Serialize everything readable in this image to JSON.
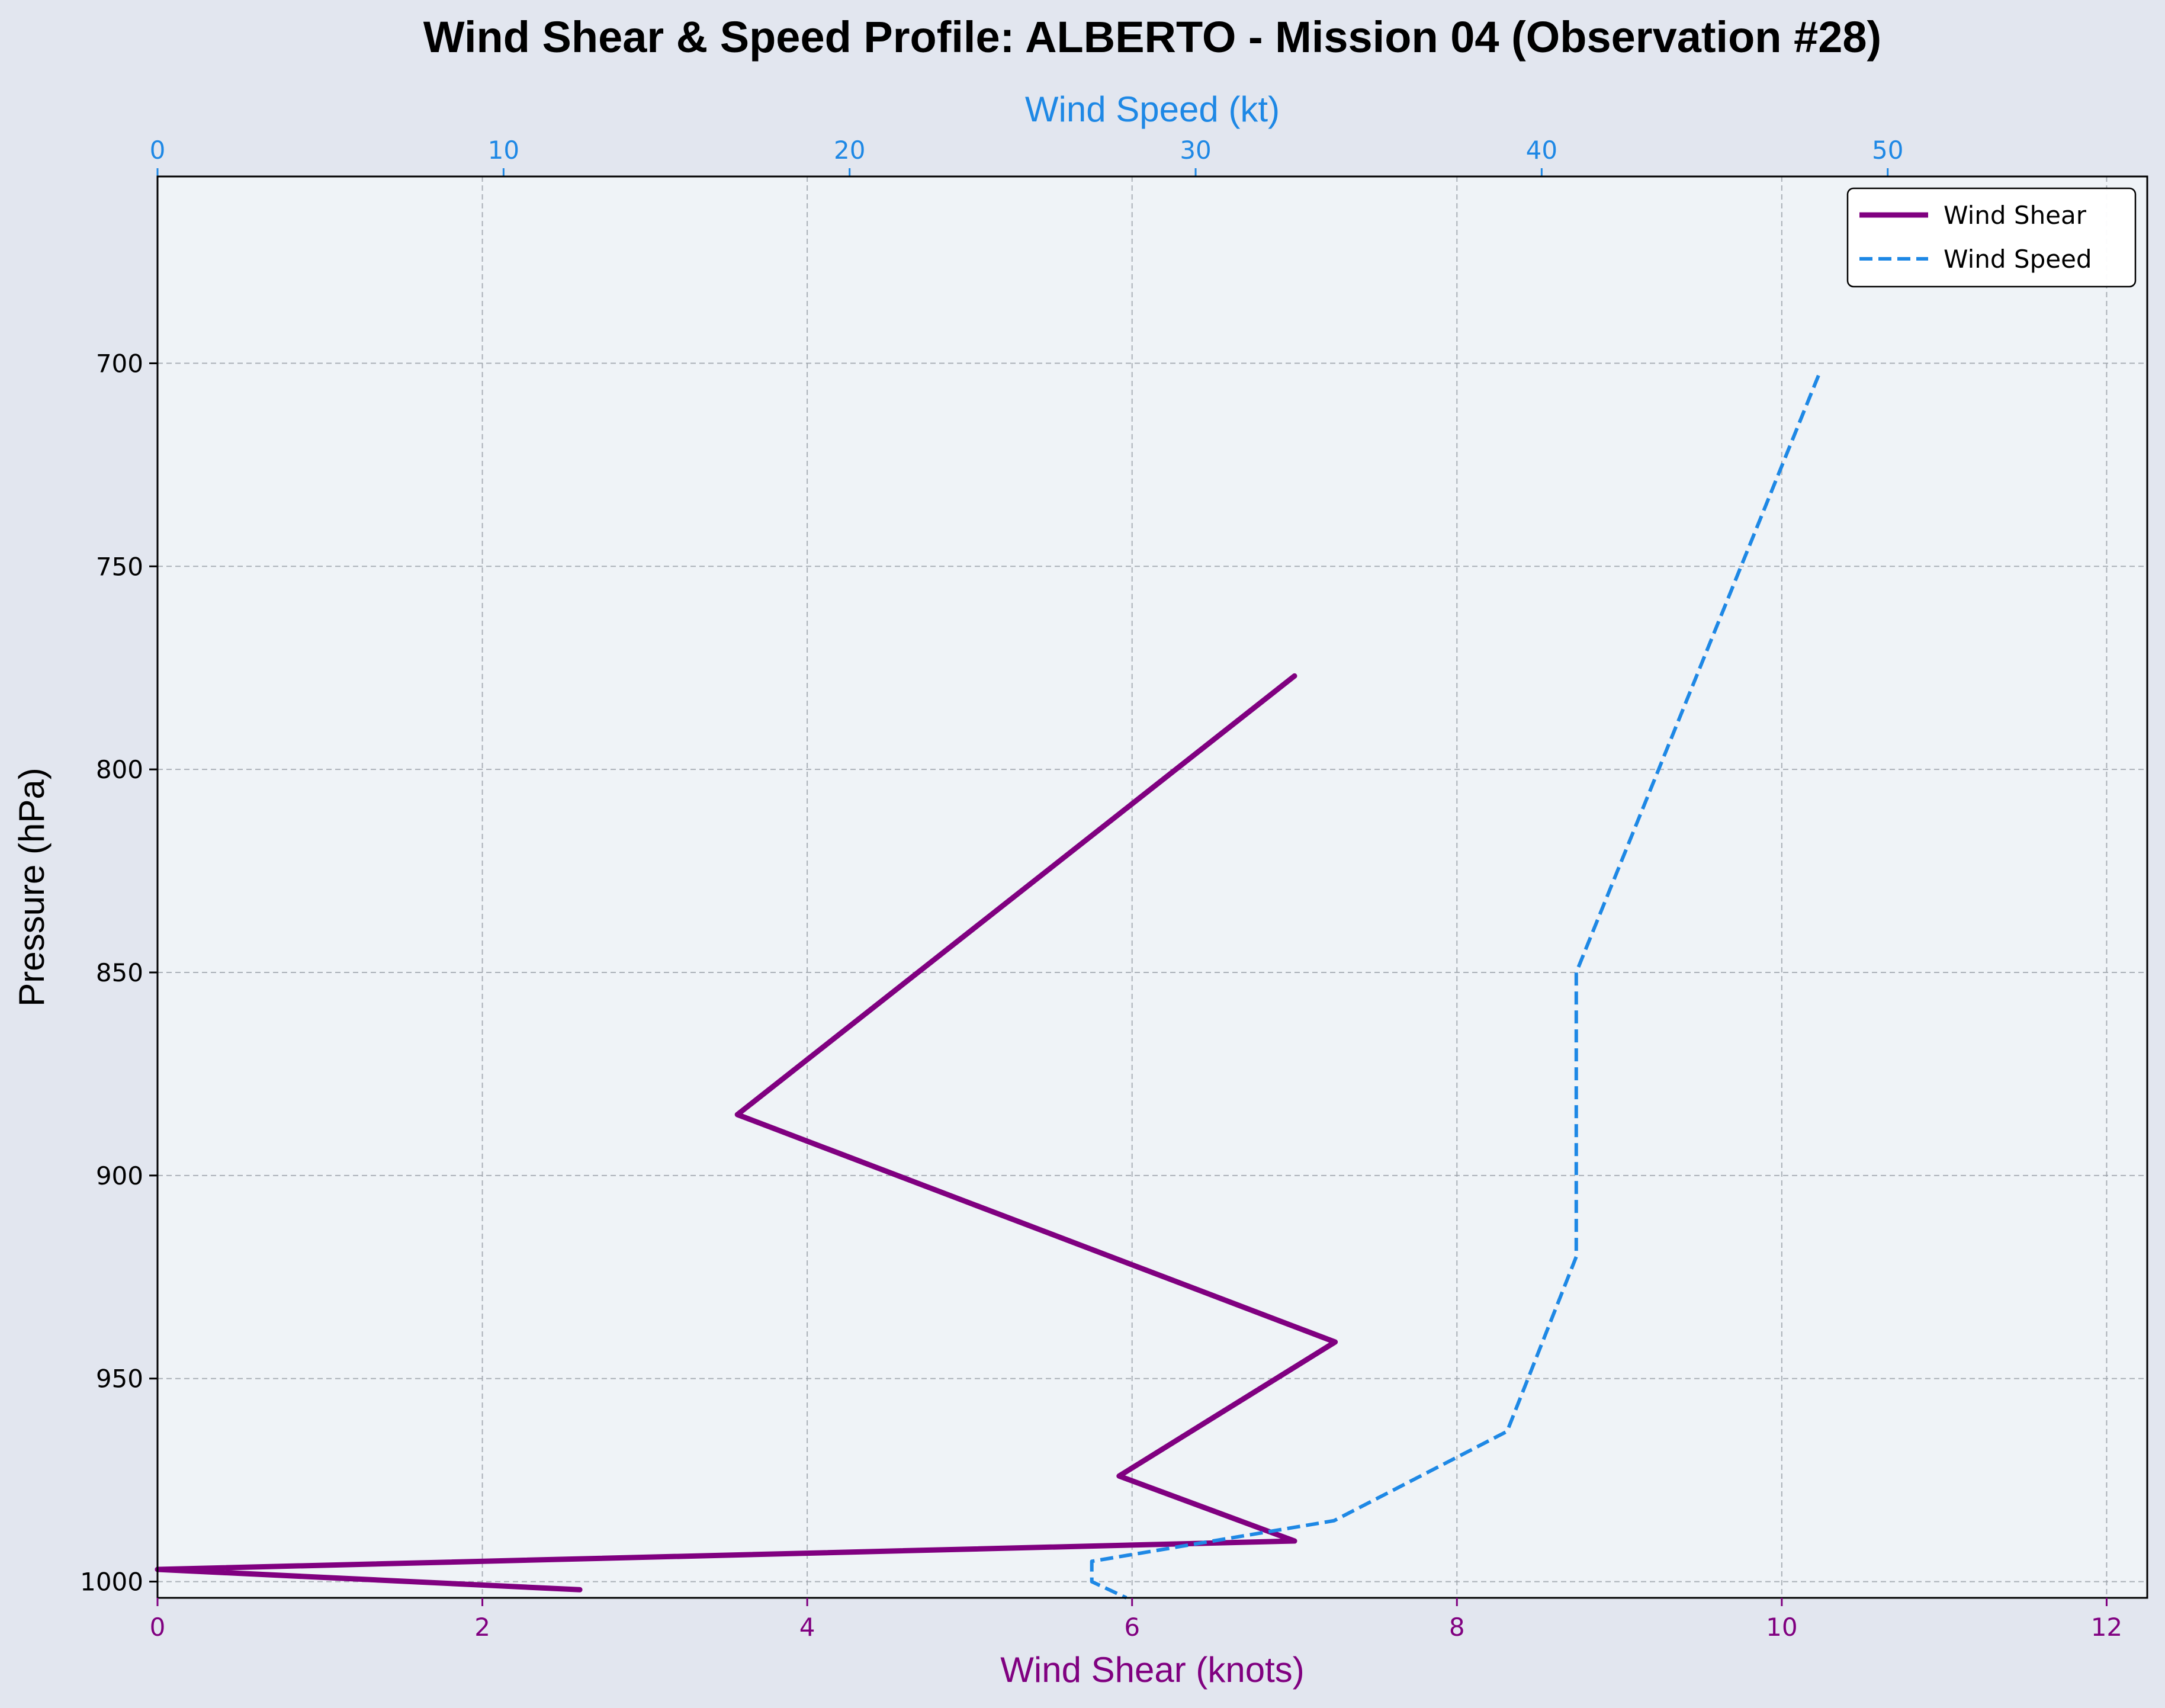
{
  "chart_data": {
    "type": "line",
    "title": "Wind Shear & Speed Profile: ALBERTO - Mission 04 (Observation #28)",
    "ylabel": "Pressure (hPa)",
    "y_inverted": true,
    "ylim": [
      1004,
      654
    ],
    "yticks": [
      700,
      750,
      800,
      850,
      900,
      950,
      1000
    ],
    "bottom_axis": {
      "label": "Wind Shear (knots)",
      "color": "#800080",
      "lim": [
        0,
        12.25
      ],
      "ticks": [
        0,
        2,
        4,
        6,
        8,
        10,
        12
      ]
    },
    "top_axis": {
      "label": "Wind Speed (kt)",
      "color": "#1e88e5",
      "lim": [
        0,
        57.5
      ],
      "ticks": [
        0,
        10,
        20,
        30,
        40,
        50
      ]
    },
    "grid": true,
    "legend": {
      "position": "top-right",
      "entries": [
        "Wind Shear",
        "Wind Speed"
      ]
    },
    "series": [
      {
        "name": "Wind Shear",
        "axis": "bottom",
        "color": "#800080",
        "style": "solid",
        "points": [
          {
            "x": 7.0,
            "y": 777
          },
          {
            "x": 3.57,
            "y": 885
          },
          {
            "x": 7.25,
            "y": 941
          },
          {
            "x": 5.92,
            "y": 974
          },
          {
            "x": 7.0,
            "y": 990
          },
          {
            "x": 0.0,
            "y": 997
          },
          {
            "x": 2.6,
            "y": 1002
          }
        ]
      },
      {
        "name": "Wind Speed",
        "axis": "top",
        "color": "#1e88e5",
        "style": "dashed",
        "points": [
          {
            "x": 48.0,
            "y": 703
          },
          {
            "x": 41.0,
            "y": 850
          },
          {
            "x": 41.0,
            "y": 920
          },
          {
            "x": 39.0,
            "y": 963
          },
          {
            "x": 34.0,
            "y": 985
          },
          {
            "x": 27.0,
            "y": 995
          },
          {
            "x": 27.0,
            "y": 1000
          },
          {
            "x": 28.0,
            "y": 1004
          }
        ]
      }
    ]
  }
}
